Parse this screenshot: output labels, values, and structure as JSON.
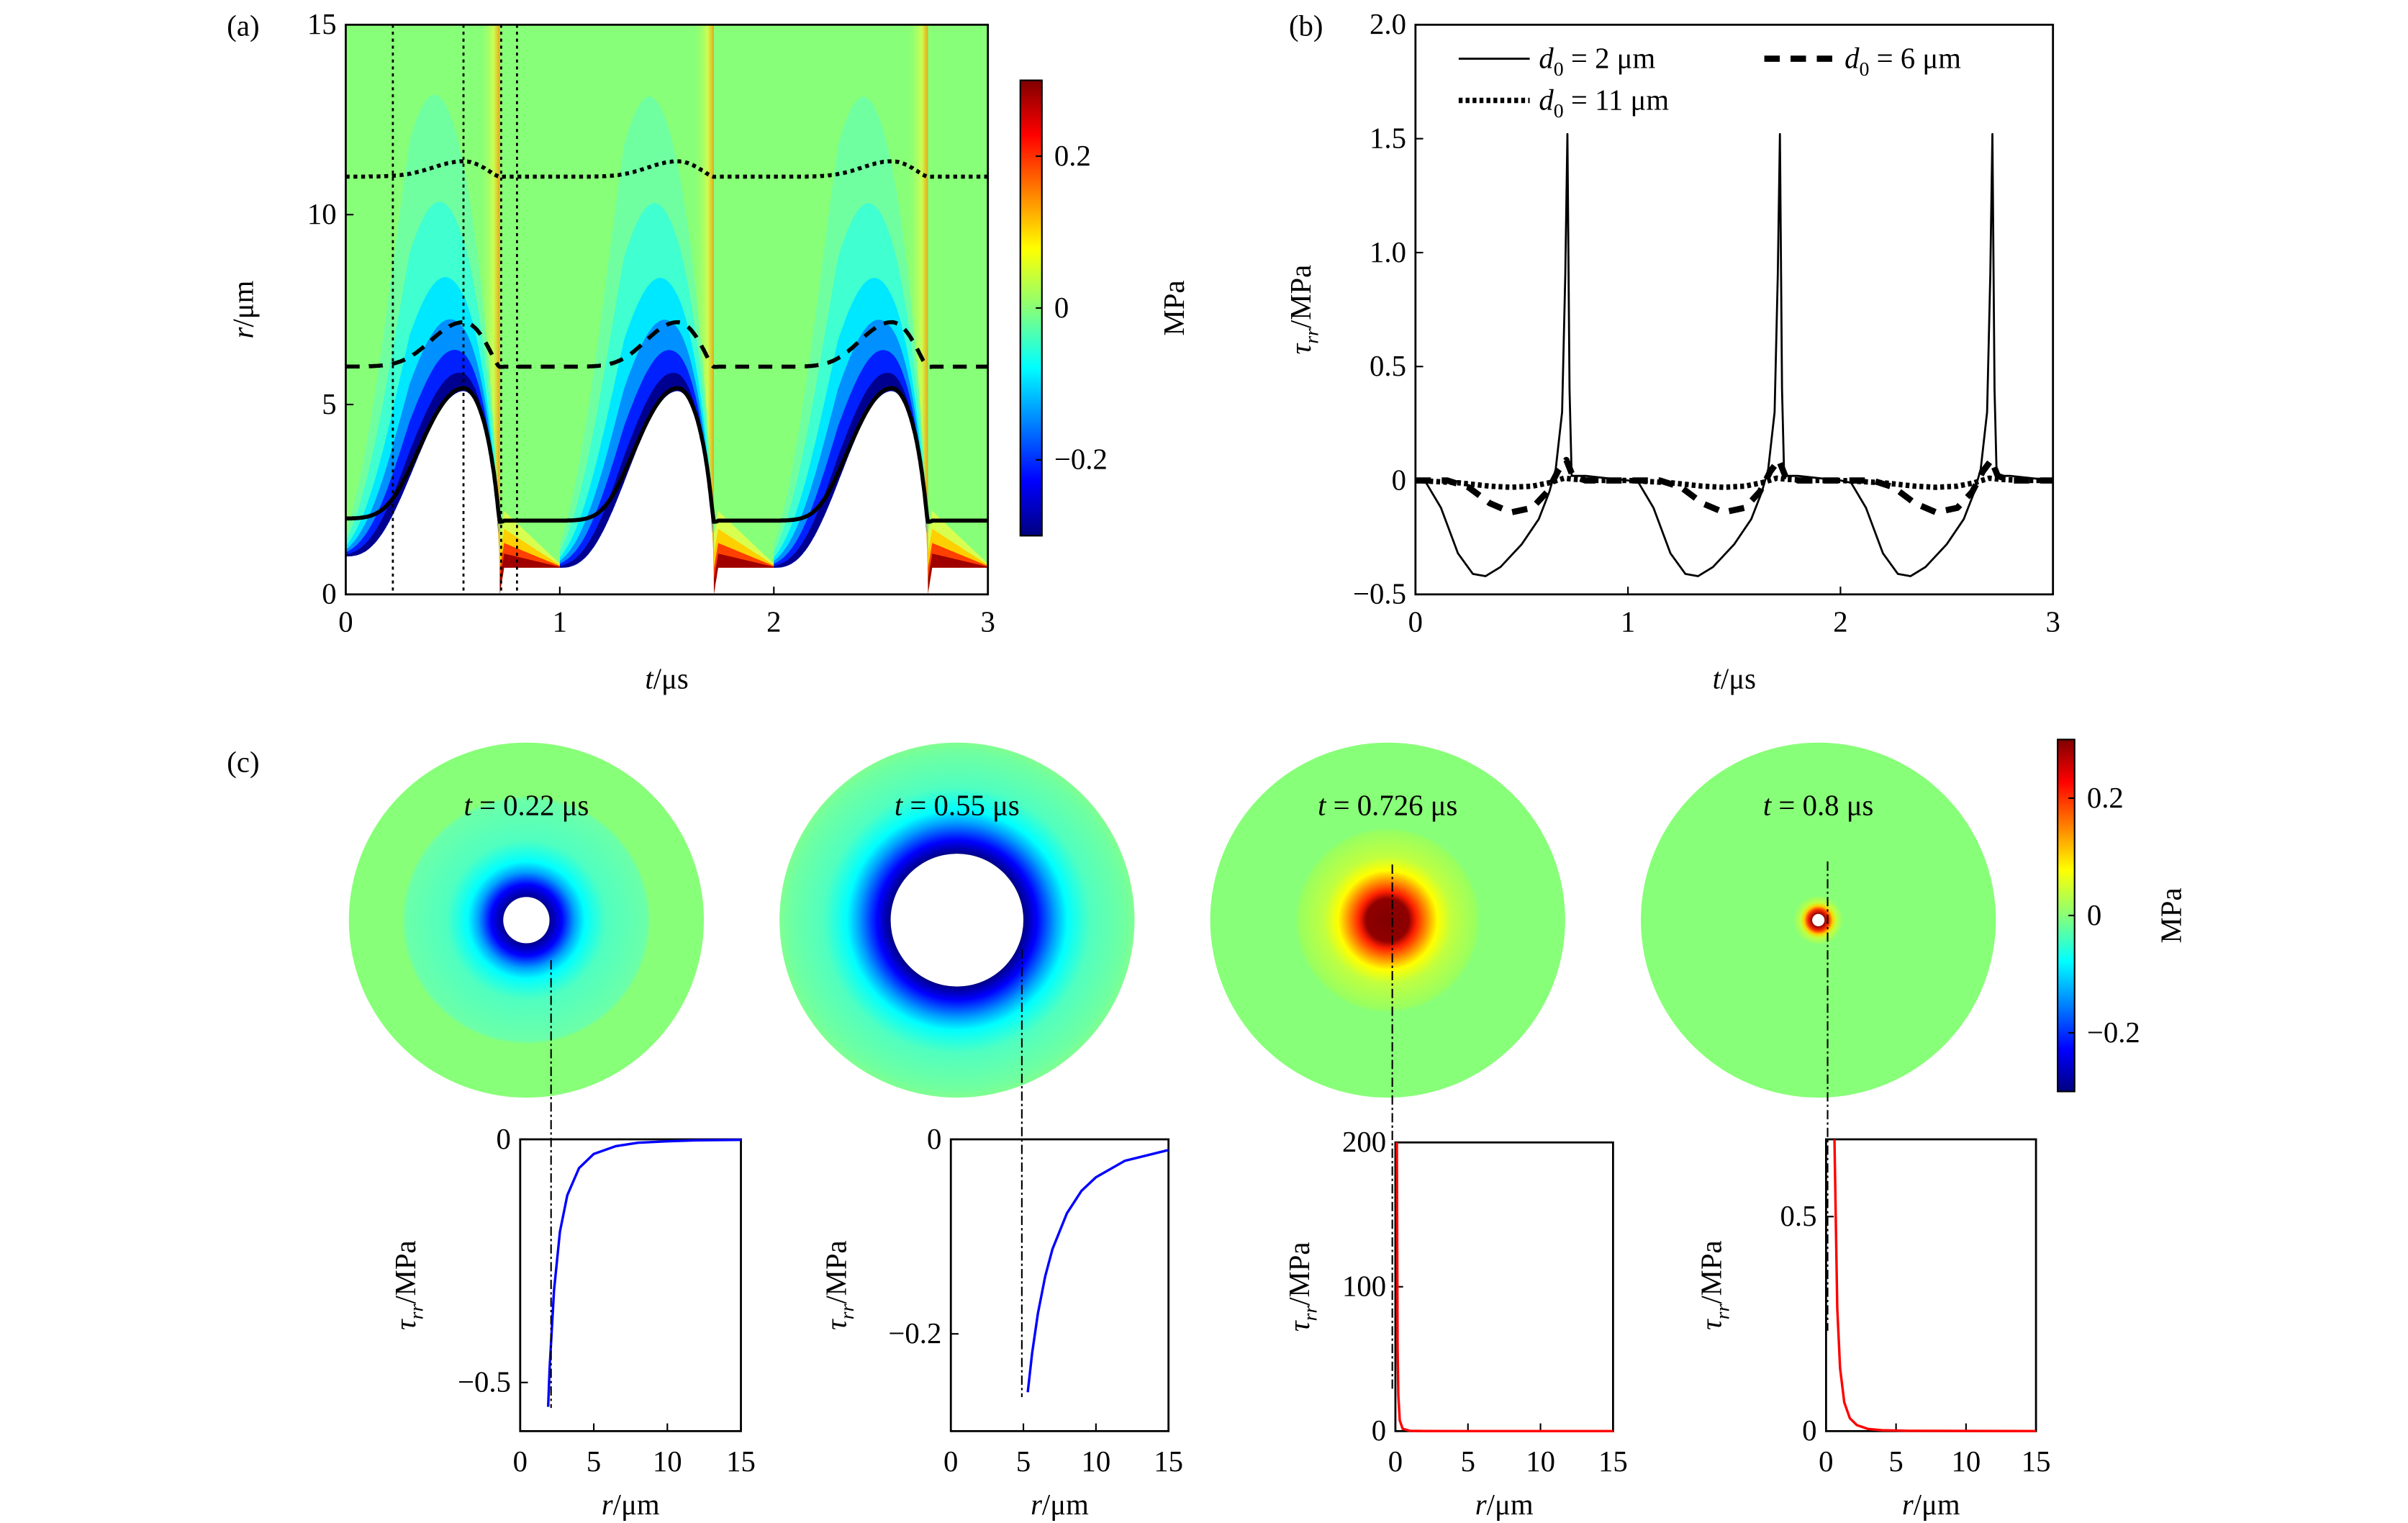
{
  "colors": {
    "zero_field": "#88ff78",
    "line": "#000000",
    "negative_curve": "#0000ff",
    "positive_curve": "#ff0000"
  },
  "panel_labels": {
    "a": "(a)",
    "b": "(b)",
    "c": "(c)"
  },
  "colorbar": {
    "unit": "MPa",
    "range": [
      -0.3,
      0.3
    ],
    "colormap": "jet",
    "ticks": [
      0.2,
      0,
      -0.2
    ],
    "tick_labels": [
      "0.2",
      "0",
      "−0.2"
    ]
  },
  "chart_data": [
    {
      "id": "a",
      "type": "heatmap",
      "xlabel": {
        "var": "t",
        "unit": "/μs"
      },
      "ylabel": {
        "var": "r",
        "unit": "/μm"
      },
      "xlim": [
        0,
        3
      ],
      "ylim": [
        0,
        15
      ],
      "xticks": [
        0,
        1,
        2,
        3
      ],
      "xtick_labels": [
        "0",
        "1",
        "2",
        "3"
      ],
      "yticks": [
        0,
        5,
        10,
        15
      ],
      "ytick_labels": [
        "0",
        "5",
        "10",
        "15"
      ],
      "marked_times": [
        0.22,
        0.55,
        0.726,
        0.8
      ],
      "bubble_initial_radius": 1.0,
      "bubble_max_radius": 5.35,
      "period": 1.0,
      "trajectories": [
        {
          "d0": 2,
          "style": "solid"
        },
        {
          "d0": 6,
          "style": "dashed"
        },
        {
          "d0": 11,
          "style": "dotted"
        }
      ]
    },
    {
      "id": "b",
      "type": "line",
      "xlabel": {
        "var": "t",
        "unit": "/μs"
      },
      "ylabel": {
        "symbol": "τ",
        "sub": "rr",
        "unit": "/MPa"
      },
      "xlim": [
        0,
        3
      ],
      "ylim": [
        -0.5,
        2.0
      ],
      "xticks": [
        0,
        1,
        2,
        3
      ],
      "xtick_labels": [
        "0",
        "1",
        "2",
        "3"
      ],
      "yticks": [
        -0.5,
        0,
        0.5,
        1.0,
        1.5,
        2.0
      ],
      "ytick_labels": [
        "−0.5",
        "0",
        "0.5",
        "1.0",
        "1.5",
        "2.0"
      ],
      "legend": "top",
      "series": [
        {
          "name": {
            "var": "d",
            "sub": "0",
            "text": " = 2 μm"
          },
          "style": "solid",
          "x": [
            0,
            0.05,
            0.12,
            0.2,
            0.27,
            0.33,
            0.4,
            0.5,
            0.58,
            0.63,
            0.66,
            0.69,
            0.705,
            0.715,
            0.725,
            0.735,
            0.8,
            0.9,
            1.0,
            1.05,
            1.12,
            1.2,
            1.27,
            1.33,
            1.4,
            1.5,
            1.58,
            1.63,
            1.66,
            1.69,
            1.705,
            1.715,
            1.725,
            1.735,
            1.8,
            1.9,
            2.0,
            2.05,
            2.12,
            2.2,
            2.27,
            2.33,
            2.4,
            2.5,
            2.58,
            2.63,
            2.66,
            2.69,
            2.705,
            2.715,
            2.725,
            2.735,
            2.8,
            2.9,
            3.0
          ],
          "y": [
            0,
            -0.01,
            -0.12,
            -0.32,
            -0.41,
            -0.42,
            -0.38,
            -0.28,
            -0.17,
            -0.05,
            0.05,
            0.3,
            0.9,
            1.52,
            0.4,
            0.02,
            0.02,
            0.01,
            0,
            -0.01,
            -0.12,
            -0.32,
            -0.41,
            -0.42,
            -0.38,
            -0.28,
            -0.17,
            -0.05,
            0.05,
            0.3,
            0.9,
            1.52,
            0.4,
            0.02,
            0.02,
            0.01,
            0,
            -0.01,
            -0.12,
            -0.32,
            -0.41,
            -0.42,
            -0.38,
            -0.28,
            -0.17,
            -0.05,
            0.05,
            0.3,
            0.9,
            1.52,
            0.4,
            0.02,
            0.02,
            0.01,
            0
          ]
        },
        {
          "name": {
            "var": "d",
            "sub": "0",
            "text": " = 6 μm"
          },
          "style": "dashed",
          "x": [
            0,
            0.15,
            0.25,
            0.35,
            0.45,
            0.55,
            0.62,
            0.67,
            0.71,
            0.74,
            0.8,
            1.0,
            1.15,
            1.25,
            1.35,
            1.45,
            1.55,
            1.62,
            1.67,
            1.71,
            1.74,
            1.8,
            2.0,
            2.15,
            2.25,
            2.35,
            2.45,
            2.55,
            2.62,
            2.67,
            2.71,
            2.74,
            2.8,
            3.0
          ],
          "y": [
            0,
            0,
            -0.03,
            -0.1,
            -0.14,
            -0.12,
            -0.05,
            0.04,
            0.09,
            0.02,
            0,
            0,
            0,
            -0.03,
            -0.1,
            -0.14,
            -0.12,
            -0.05,
            0.04,
            0.09,
            0.02,
            0,
            0,
            0,
            -0.03,
            -0.1,
            -0.14,
            -0.12,
            -0.05,
            0.04,
            0.09,
            0.02,
            0,
            0
          ]
        },
        {
          "name": {
            "var": "d",
            "sub": "0",
            "text": " = 11 μm"
          },
          "style": "dotted",
          "x": [
            0,
            0.2,
            0.35,
            0.45,
            0.55,
            0.63,
            0.7,
            0.75,
            0.85,
            1.0,
            1.2,
            1.35,
            1.45,
            1.55,
            1.63,
            1.7,
            1.75,
            1.85,
            2.0,
            2.2,
            2.35,
            2.45,
            2.55,
            2.63,
            2.7,
            2.75,
            2.85,
            3.0
          ],
          "y": [
            0,
            -0.01,
            -0.025,
            -0.03,
            -0.025,
            -0.01,
            0.01,
            0.005,
            0,
            0,
            -0.01,
            -0.025,
            -0.03,
            -0.025,
            -0.01,
            0.01,
            0.005,
            0,
            0,
            -0.01,
            -0.025,
            -0.03,
            -0.025,
            -0.01,
            0.01,
            0.005,
            0,
            0
          ]
        }
      ]
    },
    {
      "id": "c1",
      "type": "line",
      "snapshot_label": {
        "var": "t",
        "text": " = 0.22 μs"
      },
      "xlabel": {
        "var": "r",
        "unit": "/μm"
      },
      "ylabel": {
        "symbol": "τ",
        "sub": "rr",
        "unit": "/MPa"
      },
      "xlim": [
        0,
        15
      ],
      "ylim": [
        -0.6,
        0
      ],
      "xticks": [
        0,
        5,
        10,
        15
      ],
      "xtick_labels": [
        "0",
        "5",
        "10",
        "15"
      ],
      "yticks": [
        0,
        -0.5
      ],
      "ytick_labels": [
        "0",
        "−0.5"
      ],
      "color": "#0000ff",
      "marker_r": 1.9,
      "x": [
        1.9,
        2,
        2.3,
        2.7,
        3.2,
        4,
        5,
        6.5,
        8,
        10,
        12,
        15
      ],
      "y": [
        -0.55,
        -0.47,
        -0.31,
        -0.19,
        -0.115,
        -0.059,
        -0.03,
        -0.014,
        -0.007,
        -0.004,
        -0.002,
        -0.001
      ]
    },
    {
      "id": "c2",
      "type": "line",
      "snapshot_label": {
        "var": "t",
        "text": " = 0.55 μs"
      },
      "xlabel": {
        "var": "r",
        "unit": "/μm"
      },
      "ylabel": {
        "symbol": "τ",
        "sub": "rr",
        "unit": "/MPa"
      },
      "xlim": [
        0,
        15
      ],
      "ylim": [
        -0.3,
        0
      ],
      "xticks": [
        0,
        5,
        10,
        15
      ],
      "xtick_labels": [
        "0",
        "5",
        "10",
        "15"
      ],
      "yticks": [
        0,
        -0.2
      ],
      "ytick_labels": [
        "0",
        "−0.2"
      ],
      "color": "#0000ff",
      "marker_r": 5.3,
      "x": [
        5.3,
        5.6,
        6,
        6.5,
        7,
        8,
        9,
        10,
        12,
        15
      ],
      "y": [
        -0.26,
        -0.22,
        -0.179,
        -0.141,
        -0.113,
        -0.076,
        -0.053,
        -0.039,
        -0.022,
        -0.011
      ]
    },
    {
      "id": "c3",
      "type": "line",
      "snapshot_label": {
        "var": "t",
        "text": " = 0.726 μs"
      },
      "xlabel": {
        "var": "r",
        "unit": "/μm"
      },
      "ylabel": {
        "symbol": "τ",
        "sub": "rr",
        "unit": "/MPa"
      },
      "xlim": [
        0,
        15
      ],
      "ylim": [
        0,
        200
      ],
      "xticks": [
        0,
        5,
        10,
        15
      ],
      "xtick_labels": [
        "0",
        "5",
        "10",
        "15"
      ],
      "yticks": [
        0,
        100,
        200
      ],
      "ytick_labels": [
        "0",
        "100",
        "200"
      ],
      "color": "#ff0000",
      "marker_r": 0.1,
      "x": [
        0.1,
        0.15,
        0.2,
        0.3,
        0.5,
        1,
        2,
        5,
        15
      ],
      "y": [
        200,
        59,
        25,
        7.4,
        1.6,
        0.2,
        0.03,
        0,
        0
      ]
    },
    {
      "id": "c4",
      "type": "line",
      "snapshot_label": {
        "var": "t",
        "text": " = 0.8 μs"
      },
      "xlabel": {
        "var": "r",
        "unit": "/μm"
      },
      "ylabel": {
        "symbol": "τ",
        "sub": "rr",
        "unit": "/MPa"
      },
      "xlim": [
        0,
        15
      ],
      "ylim": [
        0,
        0.68
      ],
      "xticks": [
        0,
        5,
        10,
        15
      ],
      "xtick_labels": [
        "0",
        "5",
        "10",
        "15"
      ],
      "yticks": [
        0,
        0.5
      ],
      "ytick_labels": [
        "0",
        "0.5"
      ],
      "color": "#ff0000",
      "marker_r": 0.6,
      "x": [
        0.6,
        0.8,
        1,
        1.3,
        1.7,
        2.2,
        3,
        4,
        6,
        15
      ],
      "y": [
        0.68,
        0.287,
        0.147,
        0.067,
        0.03,
        0.014,
        0.005,
        0.002,
        0.0007,
        0
      ]
    }
  ]
}
